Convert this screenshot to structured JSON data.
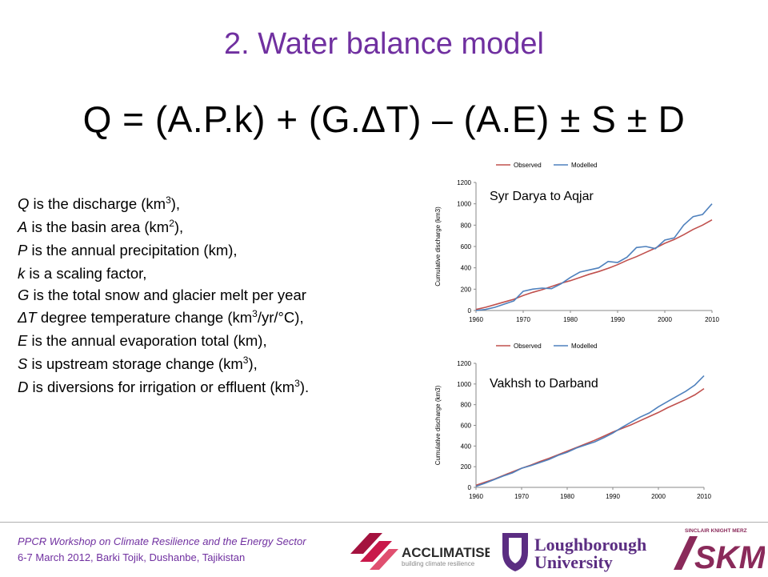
{
  "slide": {
    "title": "2. Water balance model",
    "formula": "Q = (A.P.k) + (G.ΔT) – (A.E) ± S ± D"
  },
  "definitions": [
    {
      "sym": "Q",
      "pre": " is the discharge (km",
      "sup": "3",
      "post": "),"
    },
    {
      "sym": "A",
      "pre": " is the basin area (km",
      "sup": "2",
      "post": "),"
    },
    {
      "sym": "P",
      "pre": " is the annual precipitation (km),",
      "sup": "",
      "post": ""
    },
    {
      "sym": "k",
      "pre": " is a scaling factor,",
      "sup": "",
      "post": ""
    },
    {
      "sym": "G",
      "pre": " is the total snow and glacier melt per year",
      "sup": "",
      "post": ""
    },
    {
      "sym": "ΔT",
      "pre": " degree temperature change (km",
      "sup": "3",
      "post": "/yr/°C),"
    },
    {
      "sym": "E",
      "pre": " is the annual evaporation total (km),",
      "sup": "",
      "post": ""
    },
    {
      "sym": "S",
      "pre": " is upstream storage change (km",
      "sup": "3",
      "post": "),"
    },
    {
      "sym": "D",
      "pre": " is diversions for irrigation or effluent (km",
      "sup": "3",
      "post": ")."
    }
  ],
  "footer": {
    "line1": "PPCR Workshop on Climate Resilience and the Energy Sector",
    "line2": "6-7 March 2012, Barki Tojik, Dushanbe, Tajikistan"
  },
  "logos": {
    "acclimatise": "ACCLIMATISE",
    "acclimatise_tag": "building climate resilience",
    "loughborough_1": "Loughborough",
    "loughborough_2": "University",
    "skm_top": "SINCLAIR KNIGHT MERZ",
    "skm": "SKM"
  },
  "colors": {
    "title": "#7030a0",
    "observed": "#c0504d",
    "modelled": "#4f81bd"
  },
  "chart_data": [
    {
      "type": "line",
      "label": "Syr Darya to Aqjar",
      "ylabel": "Cumulative discharge (km3)",
      "xlim": [
        1960,
        2010
      ],
      "ylim": [
        0,
        1200
      ],
      "xticks": [
        1960,
        1970,
        1980,
        1990,
        2000,
        2010
      ],
      "yticks": [
        0,
        200,
        400,
        600,
        800,
        1000,
        1200
      ],
      "legend": "top",
      "x": [
        1960,
        1962,
        1964,
        1966,
        1968,
        1970,
        1972,
        1974,
        1976,
        1978,
        1980,
        1982,
        1984,
        1986,
        1988,
        1990,
        1992,
        1994,
        1996,
        1998,
        2000,
        2002,
        2004,
        2006,
        2008,
        2010
      ],
      "series": [
        {
          "name": "Observed",
          "values": [
            10,
            30,
            55,
            80,
            105,
            140,
            170,
            195,
            225,
            255,
            280,
            310,
            340,
            365,
            395,
            430,
            470,
            505,
            545,
            585,
            630,
            665,
            710,
            760,
            800,
            850
          ]
        },
        {
          "name": "Modelled",
          "values": [
            0,
            10,
            30,
            60,
            90,
            180,
            200,
            210,
            205,
            250,
            310,
            360,
            380,
            400,
            460,
            450,
            500,
            590,
            600,
            580,
            660,
            680,
            800,
            880,
            900,
            1000
          ]
        }
      ]
    },
    {
      "type": "line",
      "label": "Vakhsh to Darband",
      "ylabel": "Cumulative discharge (km3)",
      "xlim": [
        1960,
        2010
      ],
      "ylim": [
        0,
        1200
      ],
      "xticks": [
        1960,
        1970,
        1980,
        1990,
        2000,
        2010
      ],
      "yticks": [
        0,
        200,
        400,
        600,
        800,
        1000,
        1200
      ],
      "legend": "top",
      "x": [
        1960,
        1962,
        1964,
        1966,
        1968,
        1970,
        1972,
        1974,
        1976,
        1978,
        1980,
        1982,
        1984,
        1986,
        1988,
        1990,
        1992,
        1994,
        1996,
        1998,
        2000,
        2002,
        2004,
        2006,
        2008,
        2010
      ],
      "series": [
        {
          "name": "Observed",
          "values": [
            20,
            50,
            80,
            115,
            150,
            185,
            215,
            250,
            280,
            315,
            350,
            385,
            420,
            455,
            495,
            535,
            570,
            605,
            645,
            685,
            725,
            770,
            810,
            850,
            895,
            955
          ]
        },
        {
          "name": "Modelled",
          "values": [
            10,
            40,
            75,
            110,
            140,
            185,
            210,
            240,
            270,
            310,
            340,
            380,
            410,
            440,
            480,
            525,
            580,
            630,
            680,
            720,
            780,
            830,
            880,
            930,
            990,
            1080
          ]
        }
      ]
    }
  ]
}
